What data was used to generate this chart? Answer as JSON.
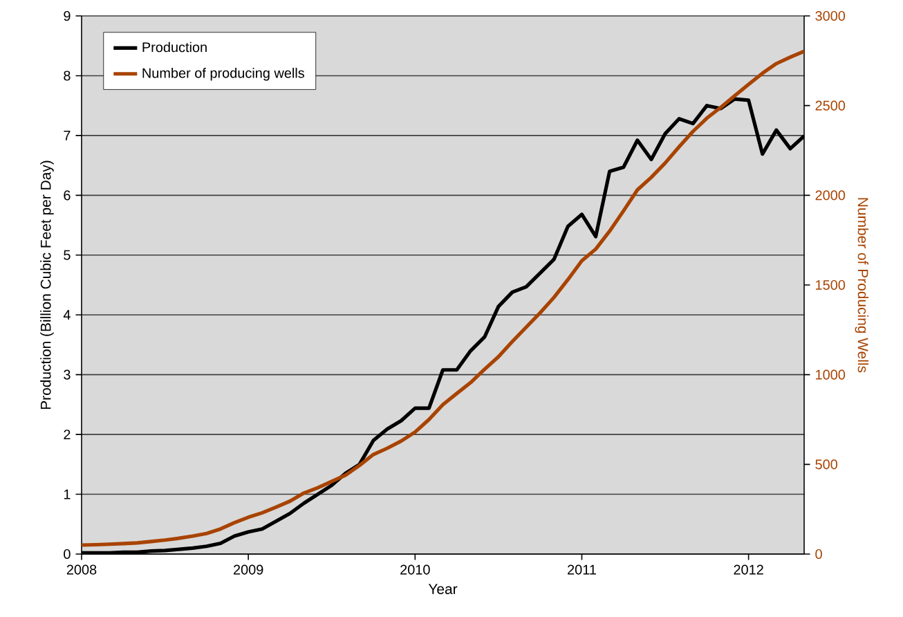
{
  "chart_data": {
    "type": "line",
    "xlabel": "Year",
    "ylabel": "Production (Billion Cubic Feet per Day)",
    "y2label": "Number of Producing Wells",
    "x": [
      "2008-01",
      "2008-02",
      "2008-03",
      "2008-04",
      "2008-05",
      "2008-06",
      "2008-07",
      "2008-08",
      "2008-09",
      "2008-10",
      "2008-11",
      "2008-12",
      "2009-01",
      "2009-02",
      "2009-03",
      "2009-04",
      "2009-05",
      "2009-06",
      "2009-07",
      "2009-08",
      "2009-09",
      "2009-10",
      "2009-11",
      "2009-12",
      "2010-01",
      "2010-02",
      "2010-03",
      "2010-04",
      "2010-05",
      "2010-06",
      "2010-07",
      "2010-08",
      "2010-09",
      "2010-10",
      "2010-11",
      "2010-12",
      "2011-01",
      "2011-02",
      "2011-03",
      "2011-04",
      "2011-05",
      "2011-06",
      "2011-07",
      "2011-08",
      "2011-09",
      "2011-10",
      "2011-11",
      "2011-12",
      "2012-01",
      "2012-02",
      "2012-03",
      "2012-04",
      "2012-05"
    ],
    "series": [
      {
        "name": "Production",
        "color": "#000000",
        "values": [
          0.02,
          0.02,
          0.02,
          0.03,
          0.03,
          0.05,
          0.06,
          0.08,
          0.1,
          0.13,
          0.18,
          0.3,
          0.37,
          0.42,
          0.55,
          0.68,
          0.85,
          1.0,
          1.15,
          1.35,
          1.5,
          1.9,
          2.09,
          2.23,
          2.44,
          2.44,
          3.08,
          3.08,
          3.4,
          3.63,
          4.14,
          4.38,
          4.47,
          4.7,
          4.93,
          5.48,
          5.68,
          5.31,
          6.4,
          6.47,
          6.92,
          6.6,
          7.03,
          7.28,
          7.2,
          7.5,
          7.45,
          7.61,
          7.59,
          6.69,
          7.09,
          6.78,
          6.99
        ]
      },
      {
        "name": "Number of producing wells",
        "color": "#a84300",
        "axis": "y2",
        "values": [
          50,
          52,
          55,
          58,
          62,
          70,
          78,
          88,
          100,
          115,
          140,
          175,
          205,
          230,
          262,
          295,
          340,
          370,
          405,
          440,
          494,
          555,
          590,
          630,
          680,
          750,
          833,
          895,
          956,
          1030,
          1100,
          1185,
          1265,
          1345,
          1431,
          1530,
          1635,
          1700,
          1800,
          1913,
          2030,
          2100,
          2180,
          2270,
          2356,
          2430,
          2490,
          2555,
          2618,
          2680,
          2734,
          2770,
          2803
        ]
      }
    ],
    "xlim": [
      "2008-01",
      "2012-05"
    ],
    "xticks": [
      "2008",
      "2009",
      "2010",
      "2011",
      "2012"
    ],
    "ylim": [
      0,
      9
    ],
    "yticks": [
      0,
      1,
      2,
      3,
      4,
      5,
      6,
      7,
      8,
      9
    ],
    "y2lim": [
      0,
      3000
    ],
    "y2ticks": [
      0,
      500,
      1000,
      1500,
      2000,
      2500,
      3000
    ],
    "grid": "y",
    "legend": "top left",
    "marker": "none",
    "line_style": "solid"
  }
}
